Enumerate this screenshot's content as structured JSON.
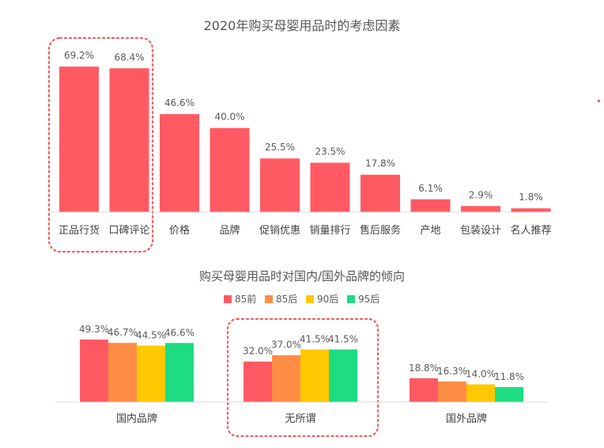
{
  "chart_data": [
    {
      "type": "bar",
      "title": "2020年购买母婴用品时的考虑因素",
      "categories": [
        "正品行货",
        "口碑评论",
        "价格",
        "品牌",
        "促销优惠",
        "销量排行",
        "售后服务",
        "产地",
        "包装设计",
        "名人推荐"
      ],
      "values": [
        69.2,
        68.4,
        46.6,
        40.0,
        25.5,
        23.5,
        17.8,
        6.1,
        2.9,
        1.8
      ],
      "value_labels": [
        "69.2%",
        "68.4%",
        "46.6%",
        "40.0%",
        "25.5%",
        "23.5%",
        "17.8%",
        "6.1%",
        "2.9%",
        "1.8%"
      ],
      "ylim": [
        0,
        70
      ],
      "color": "#FF5A64",
      "highlight": "dotted box around 正品行货 and 口碑评论",
      "grid": false
    },
    {
      "type": "bar",
      "title": "购买母婴用品时对国内/国外品牌的倾向",
      "categories": [
        "国内品牌",
        "无所谓",
        "国外品牌"
      ],
      "series": [
        {
          "name": "85前",
          "color": "#FF5A64",
          "values": [
            49.3,
            32.0,
            18.8
          ],
          "labels": [
            "49.3%",
            "32.0%",
            "18.8%"
          ]
        },
        {
          "name": "85后",
          "color": "#FF8C45",
          "values": [
            46.7,
            37.0,
            16.3
          ],
          "labels": [
            "46.7%",
            "37.0%",
            "16.3%"
          ]
        },
        {
          "name": "90后",
          "color": "#FFC800",
          "values": [
            44.5,
            41.5,
            14.0
          ],
          "labels": [
            "44.5%",
            "41.5%",
            "14.0%"
          ]
        },
        {
          "name": "95后",
          "color": "#1EDC82",
          "values": [
            46.6,
            41.5,
            11.8
          ],
          "labels": [
            "46.6%",
            "41.5%",
            "11.8%"
          ]
        }
      ],
      "ylim": [
        0,
        50
      ],
      "legend": "top-center",
      "highlight": "dotted box around 无所谓",
      "grid": false
    }
  ]
}
